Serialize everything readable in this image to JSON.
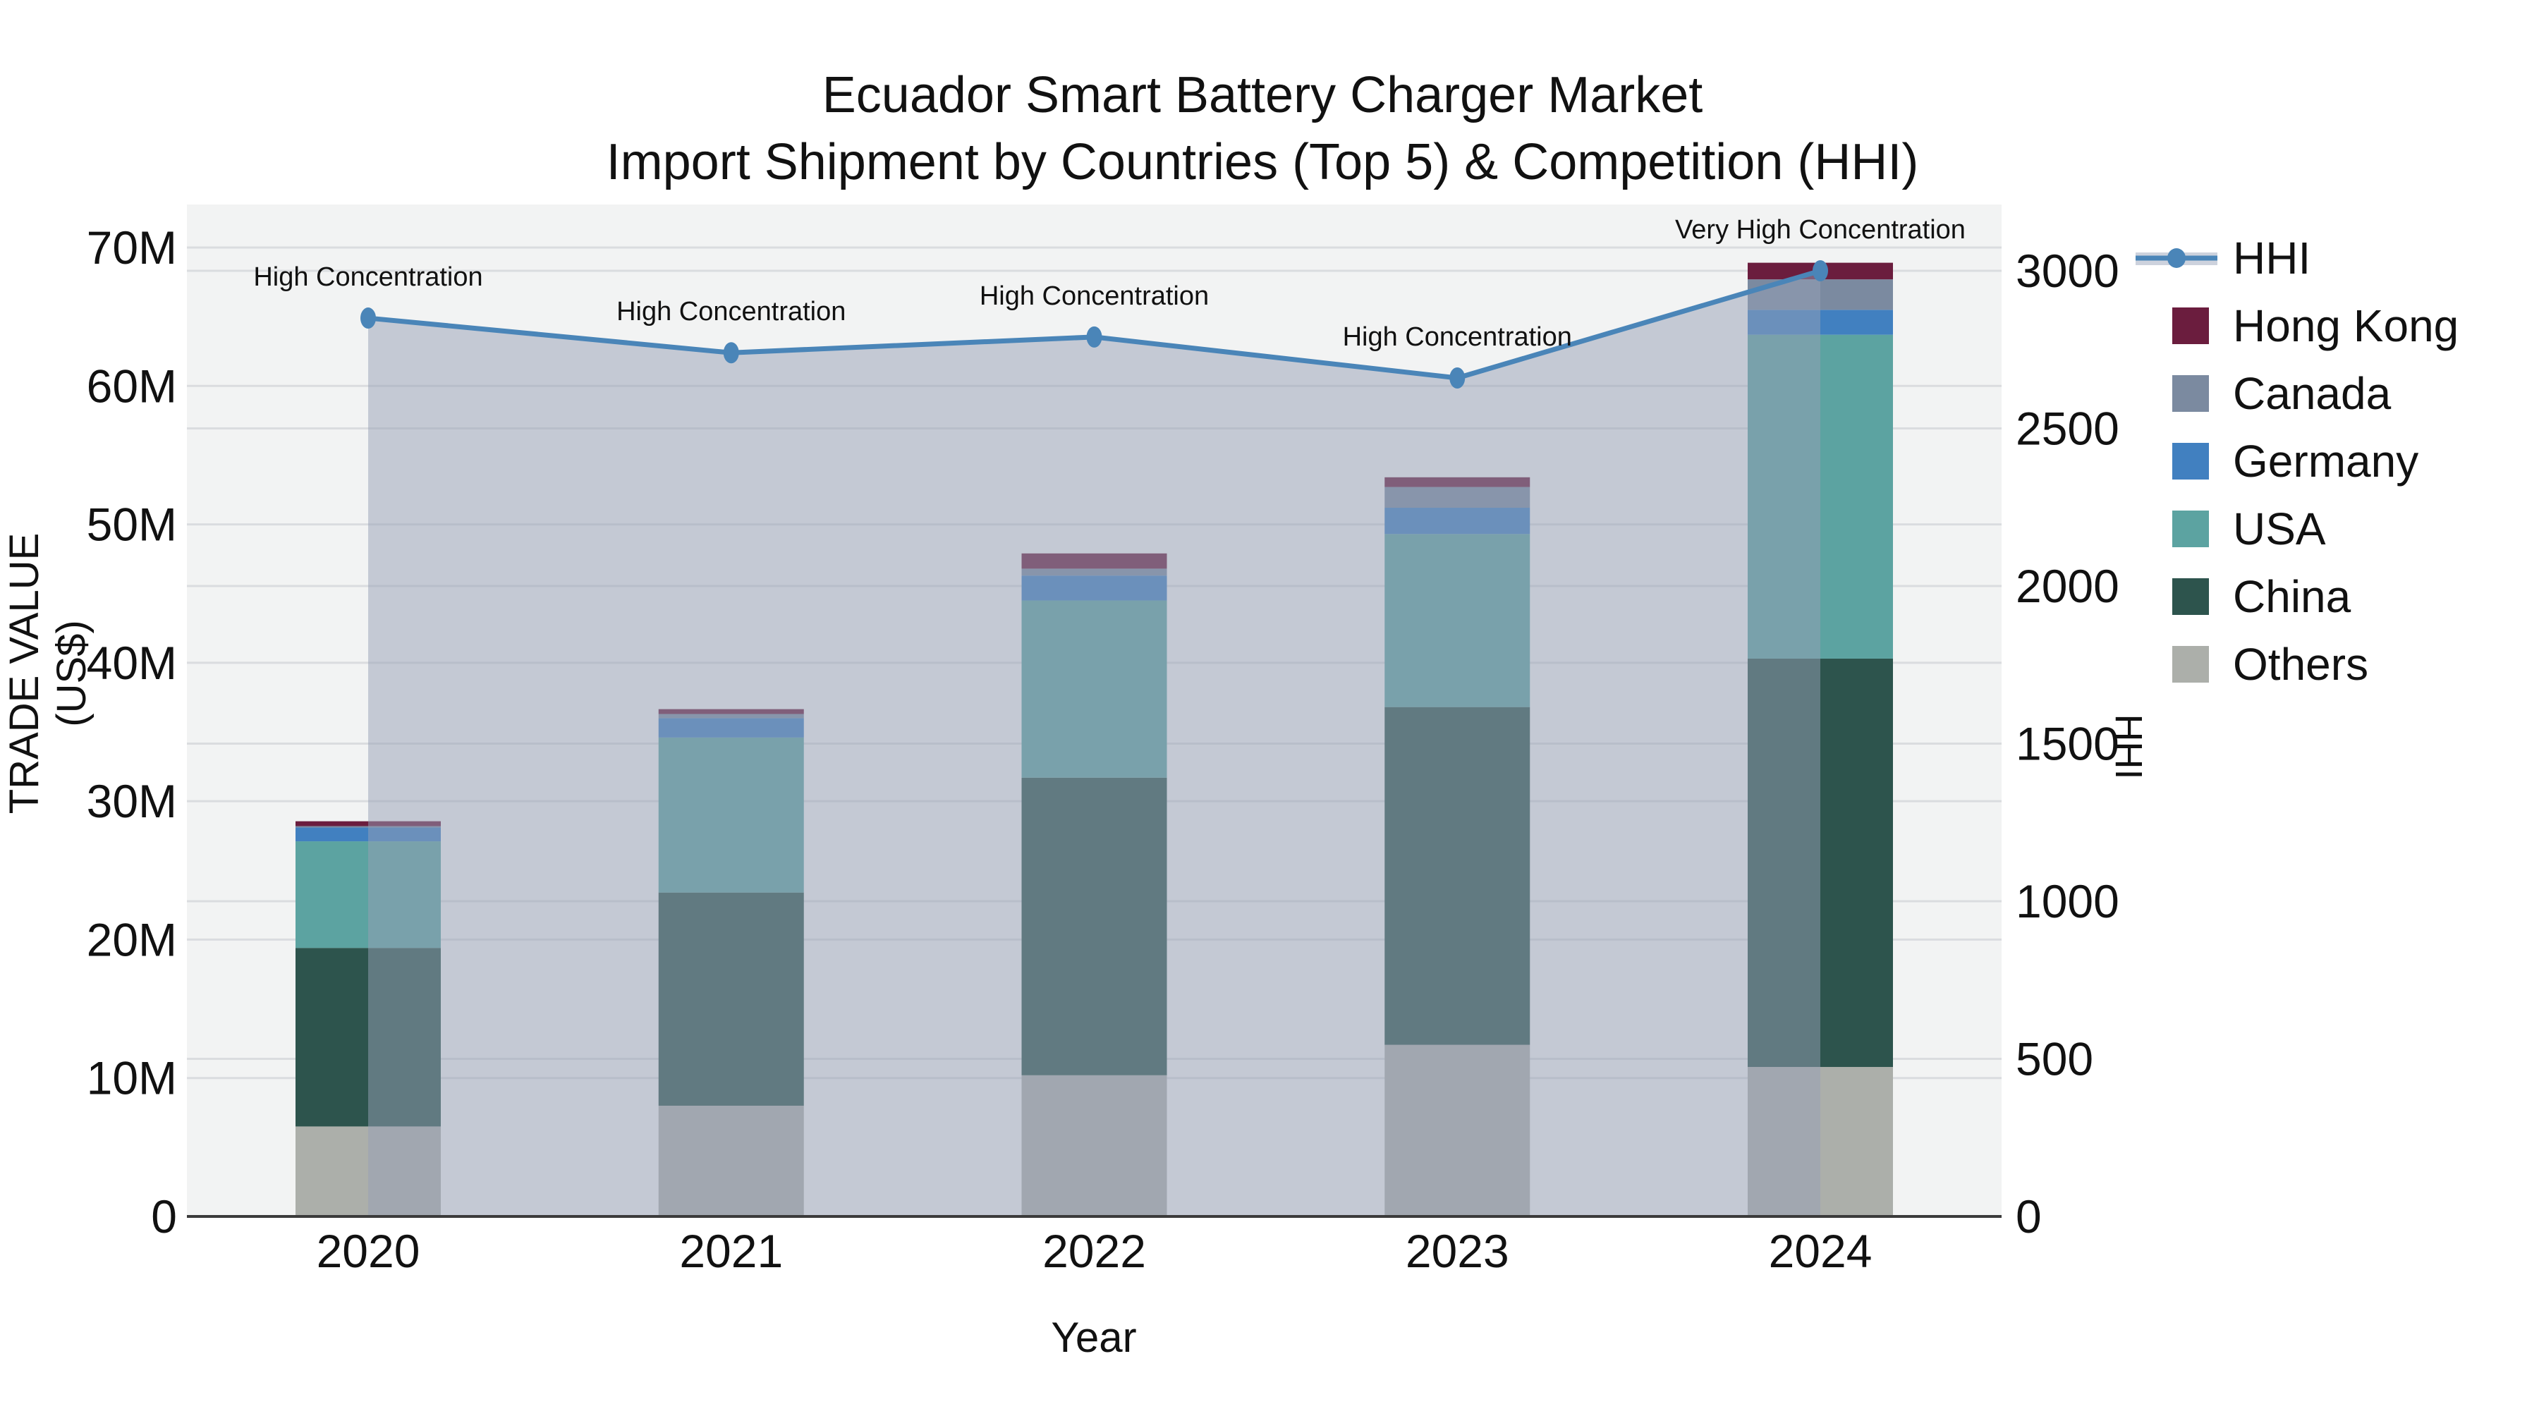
{
  "title": {
    "line1": "Ecuador Smart Battery Charger Market",
    "line2": "Import Shipment by Countries (Top 5) & Competition (HHI)"
  },
  "axes": {
    "left_title": "TRADE VALUE (US$)",
    "left_ticks": [
      "0",
      "10M",
      "20M",
      "30M",
      "40M",
      "50M",
      "60M",
      "70M"
    ],
    "left_tick_values_musd": [
      0,
      10,
      20,
      30,
      40,
      50,
      60,
      70
    ],
    "bottom_title": "Year",
    "right_title": "HHI",
    "right_ticks": [
      "0",
      "500",
      "1000",
      "1500",
      "2000",
      "2500",
      "3000"
    ],
    "right_tick_values": [
      0,
      500,
      1000,
      1500,
      2000,
      2500,
      3000
    ]
  },
  "legend": {
    "items": [
      {
        "label": "HHI",
        "type": "line",
        "color": "#4A85B8"
      },
      {
        "label": "Hong Kong",
        "type": "box",
        "color": "#6B1D3E"
      },
      {
        "label": "Canada",
        "type": "box",
        "color": "#7B8AA0"
      },
      {
        "label": "Germany",
        "type": "box",
        "color": "#4180C0"
      },
      {
        "label": "USA",
        "type": "box",
        "color": "#5CA3A1"
      },
      {
        "label": "China",
        "type": "box",
        "color": "#2D544D"
      },
      {
        "label": "Others",
        "type": "box",
        "color": "#ACAFAA"
      }
    ]
  },
  "chart_data": {
    "type": "bar",
    "subtype": "stacked-bars-with-line",
    "title": "Ecuador Smart Battery Charger Market Import Shipment by Countries (Top 5) & Competition (HHI)",
    "xlabel": "Year",
    "ylabel_left": "TRADE VALUE (US$)",
    "ylabel_right": "HHI",
    "ylim_left_musd": [
      0,
      70
    ],
    "ylim_right_hhi": [
      0,
      3000
    ],
    "grid": true,
    "legend_position": "right",
    "categories": [
      "2020",
      "2021",
      "2022",
      "2023",
      "2024"
    ],
    "series": [
      {
        "name": "Others",
        "stack_order": 1,
        "color": "#ACAFAA",
        "values_musd": [
          6.5,
          8.0,
          10.2,
          12.4,
          10.8
        ]
      },
      {
        "name": "China",
        "stack_order": 2,
        "color": "#2D544D",
        "values_musd": [
          12.9,
          15.4,
          21.5,
          24.4,
          29.5
        ]
      },
      {
        "name": "USA",
        "stack_order": 3,
        "color": "#5CA3A1",
        "values_musd": [
          7.7,
          11.2,
          12.8,
          12.5,
          23.4
        ]
      },
      {
        "name": "Germany",
        "stack_order": 4,
        "color": "#4180C0",
        "values_musd": [
          1.0,
          1.4,
          1.8,
          1.9,
          1.8
        ]
      },
      {
        "name": "Canada",
        "stack_order": 5,
        "color": "#7B8AA0",
        "values_musd": [
          0.1,
          0.3,
          0.5,
          1.5,
          2.2
        ]
      },
      {
        "name": "Hong Kong",
        "stack_order": 6,
        "color": "#6B1D3E",
        "values_musd": [
          0.35,
          0.35,
          1.1,
          0.7,
          1.2
        ]
      }
    ],
    "bar_totals_musd": [
      28.55,
      36.65,
      47.9,
      53.4,
      68.9
    ],
    "line_series": {
      "name": "HHI",
      "color": "#4A85B8",
      "area_fill": "rgba(150,160,182,0.50)",
      "values": [
        2850,
        2740,
        2790,
        2660,
        3000
      ]
    },
    "annotations": [
      "High Concentration",
      "High Concentration",
      "High Concentration",
      "High Concentration",
      "Very High Concentration"
    ]
  },
  "colors": {
    "plot_background": "#F2F3F3",
    "gridline": "#DADCDF",
    "axis_line": "#3B3B3B",
    "text": "#111111"
  }
}
